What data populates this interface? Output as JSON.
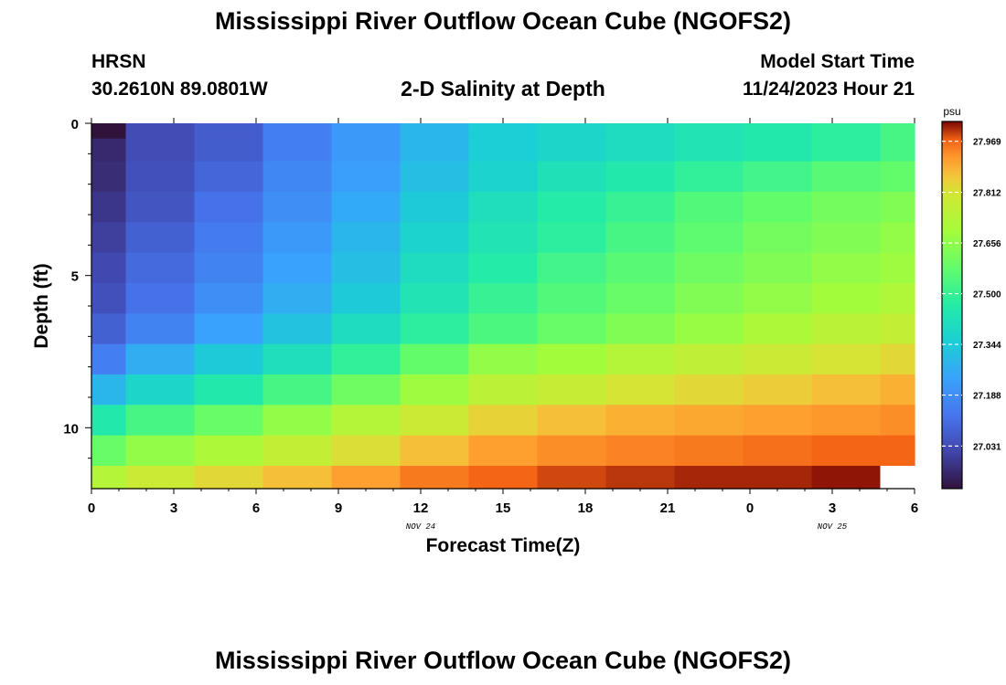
{
  "header": {
    "title": "Mississippi River Outflow Ocean Cube (NGOFS2)",
    "station": "HRSN",
    "coords": "30.2610N  89.0801W",
    "subtitle": "2-D Salinity at Depth",
    "model_label": "Model Start Time",
    "model_time": "11/24/2023 Hour 21"
  },
  "footer": {
    "title": "Mississippi River Outflow Ocean Cube (NGOFS2)"
  },
  "chart_data": {
    "type": "heatmap",
    "title": "2-D Salinity at Depth",
    "xlabel": "Forecast Time(Z)",
    "ylabel": "Depth (ft)",
    "x_ticks": [
      "0",
      "3",
      "6",
      "9",
      "12",
      "15",
      "18",
      "21",
      "0",
      "3",
      "6"
    ],
    "x_date_labels": [
      {
        "tick_index": 4,
        "text": "NOV 24"
      },
      {
        "tick_index": 9,
        "text": "NOV 25"
      }
    ],
    "y_ticks": [
      "0",
      "5",
      "10"
    ],
    "ylim": [
      0,
      12
    ],
    "y_inverted": true,
    "grid": false,
    "colorbar": {
      "unit": "psu",
      "min": 26.9,
      "max": 28.03,
      "ticks": [
        "27.031",
        "27.188",
        "27.344",
        "27.500",
        "27.656",
        "27.812",
        "27.969"
      ]
    },
    "x_columns_hours": [
      0,
      2.5,
      5,
      7.5,
      10,
      12.5,
      15,
      17.5,
      20,
      22.5,
      25,
      27.5,
      30
    ],
    "depth_rows_ft": [
      0.25,
      0.75,
      1.75,
      2.75,
      3.75,
      4.75,
      5.75,
      6.75,
      7.75,
      8.75,
      9.75,
      10.75,
      11.75
    ],
    "values": [
      [
        26.9,
        27.03,
        27.07,
        27.15,
        27.22,
        27.29,
        27.35,
        27.38,
        27.4,
        27.43,
        27.45,
        27.48,
        27.53
      ],
      [
        26.95,
        27.03,
        27.07,
        27.15,
        27.22,
        27.29,
        27.35,
        27.38,
        27.4,
        27.43,
        27.45,
        27.48,
        27.53
      ],
      [
        26.96,
        27.04,
        27.09,
        27.17,
        27.23,
        27.31,
        27.37,
        27.42,
        27.45,
        27.49,
        27.52,
        27.56,
        27.58
      ],
      [
        26.98,
        27.05,
        27.12,
        27.19,
        27.26,
        27.34,
        27.41,
        27.46,
        27.5,
        27.55,
        27.58,
        27.61,
        27.63
      ],
      [
        27.0,
        27.08,
        27.14,
        27.22,
        27.29,
        27.37,
        27.43,
        27.48,
        27.53,
        27.57,
        27.61,
        27.63,
        27.66
      ],
      [
        27.02,
        27.1,
        27.16,
        27.24,
        27.31,
        27.4,
        27.46,
        27.52,
        27.56,
        27.6,
        27.63,
        27.66,
        27.68
      ],
      [
        27.04,
        27.12,
        27.19,
        27.27,
        27.34,
        27.43,
        27.5,
        27.55,
        27.59,
        27.63,
        27.66,
        27.69,
        27.72
      ],
      [
        27.08,
        27.16,
        27.24,
        27.32,
        27.4,
        27.48,
        27.54,
        27.59,
        27.63,
        27.67,
        27.71,
        27.74,
        27.77
      ],
      [
        27.15,
        27.27,
        27.34,
        27.41,
        27.49,
        27.58,
        27.66,
        27.69,
        27.73,
        27.76,
        27.79,
        27.81,
        27.83
      ],
      [
        27.29,
        27.38,
        27.45,
        27.53,
        27.6,
        27.68,
        27.75,
        27.78,
        27.81,
        27.83,
        27.85,
        27.87,
        27.89
      ],
      [
        27.45,
        27.53,
        27.59,
        27.66,
        27.73,
        27.79,
        27.84,
        27.87,
        27.89,
        27.9,
        27.91,
        27.92,
        27.93
      ],
      [
        27.59,
        27.66,
        27.71,
        27.77,
        27.82,
        27.87,
        27.91,
        27.93,
        27.94,
        27.95,
        27.96,
        27.97,
        27.97
      ],
      [
        27.73,
        27.79,
        27.83,
        27.87,
        27.91,
        27.95,
        27.97,
        27.99,
        28.0,
        28.01,
        28.01,
        28.02,
        null
      ]
    ]
  }
}
